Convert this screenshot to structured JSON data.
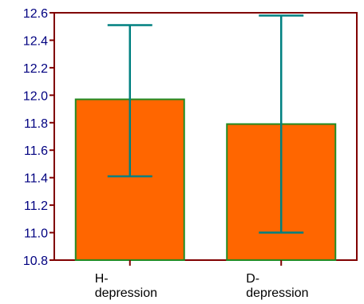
{
  "chart_data": {
    "type": "bar",
    "title": "",
    "xlabel": "",
    "ylabel": "",
    "categories": [
      "H-\ndepression",
      "D-\ndepression"
    ],
    "values": [
      11.97,
      11.79
    ],
    "error_bars": [
      {
        "low": 11.41,
        "high": 12.51
      },
      {
        "low": 11.0,
        "high": 12.58
      }
    ],
    "ylim": [
      10.8,
      12.6
    ],
    "yticks": [
      "10.8",
      "11.0",
      "11.2",
      "11.4",
      "11.6",
      "11.8",
      "12.0",
      "12.2",
      "12.4",
      "12.6"
    ],
    "grid": false,
    "legend": "none",
    "colors": {
      "bar_fill": "#ff6600",
      "bar_edge": "#228b22",
      "error_bar": "#008080",
      "axis": "#800000",
      "tick_label": "#000080",
      "category_label": "#000000"
    }
  }
}
